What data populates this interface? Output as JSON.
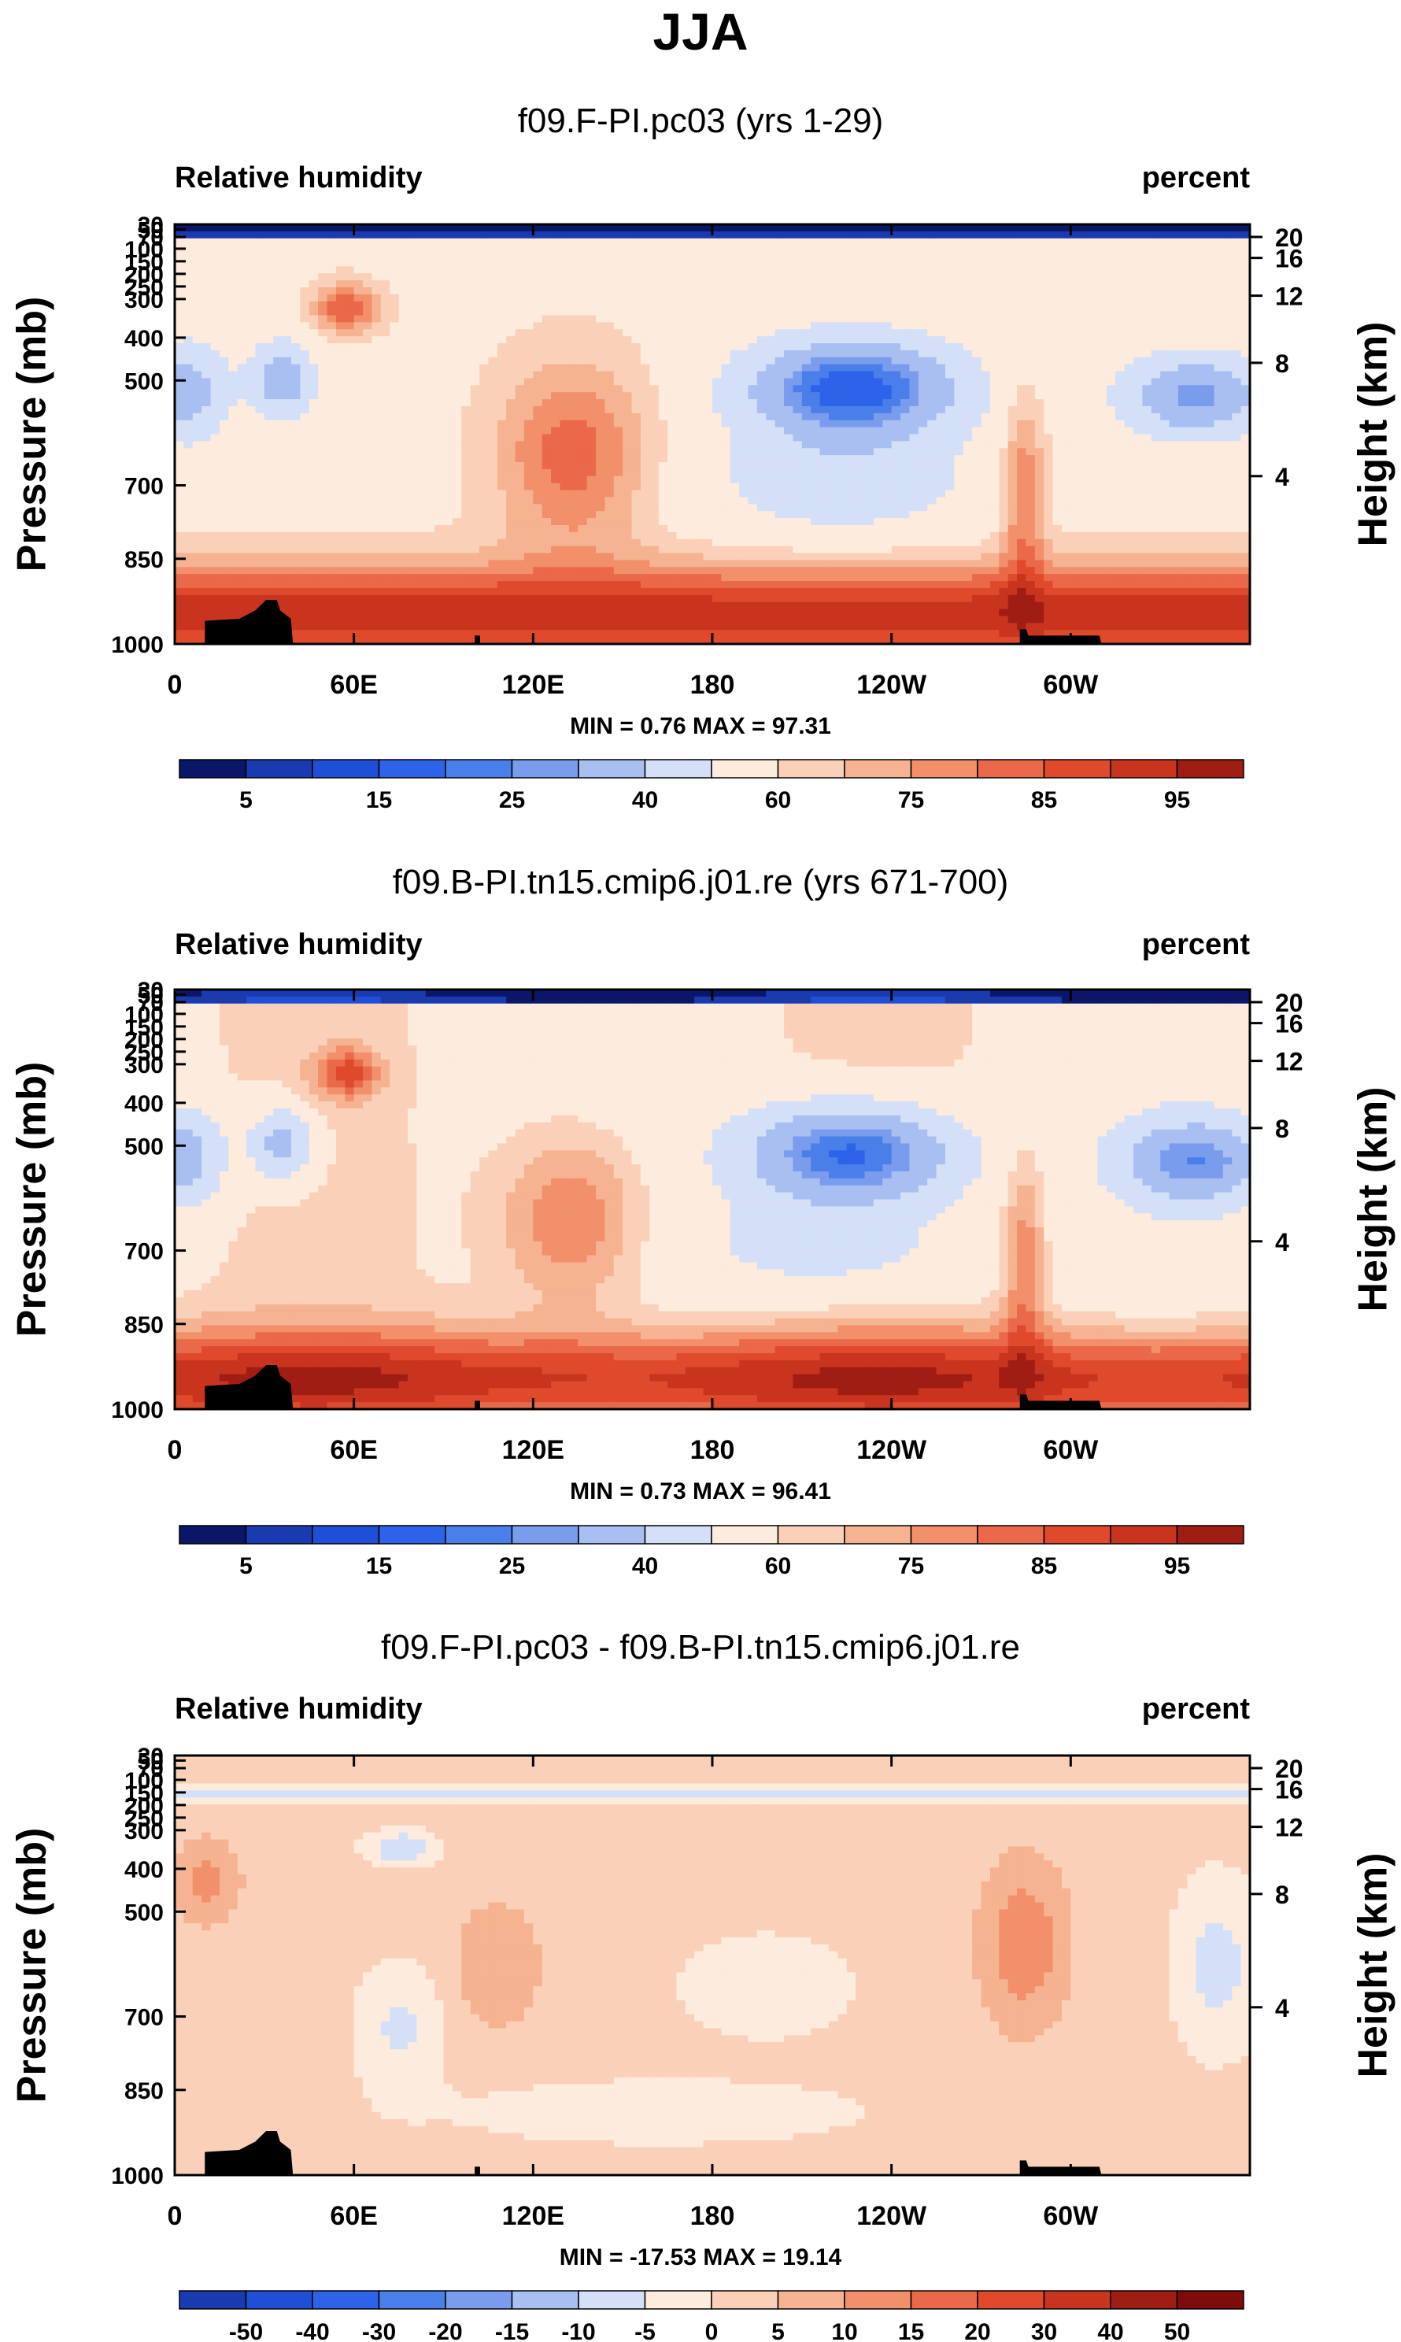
{
  "title": "JJA",
  "chart_data": [
    {
      "type": "heatmap",
      "title": "f09.F-PI.pc03 (yrs 1-29)",
      "left_label": "Relative humidity",
      "right_label": "percent",
      "ylabel": "Pressure (mb)",
      "ylabel_right": "Height (km)",
      "x_ticks": [
        "0",
        "60E",
        "120E",
        "180",
        "120W",
        "60W"
      ],
      "y_ticks": [
        "30",
        "50",
        "70",
        "100",
        "150",
        "200",
        "250",
        "300",
        "400",
        "500",
        "700",
        "850",
        "1000"
      ],
      "height_ticks": [
        "20",
        "16",
        "12",
        "8",
        "4"
      ],
      "stats": "MIN =   0.76  MAX =  97.31",
      "colorbar_labels": [
        "5",
        "15",
        "25",
        "40",
        "60",
        "75",
        "85",
        "95"
      ],
      "levels": [
        5,
        10,
        15,
        20,
        25,
        30,
        40,
        50,
        60,
        65,
        70,
        75,
        80,
        85,
        90,
        95
      ],
      "min": 0.76,
      "max": 97.31
    },
    {
      "type": "heatmap",
      "title": "f09.B-PI.tn15.cmip6.j01.re (yrs 671-700)",
      "left_label": "Relative humidity",
      "right_label": "percent",
      "ylabel": "Pressure (mb)",
      "ylabel_right": "Height (km)",
      "x_ticks": [
        "0",
        "60E",
        "120E",
        "180",
        "120W",
        "60W"
      ],
      "y_ticks": [
        "30",
        "50",
        "70",
        "100",
        "150",
        "200",
        "250",
        "300",
        "400",
        "500",
        "700",
        "850",
        "1000"
      ],
      "height_ticks": [
        "20",
        "16",
        "12",
        "8",
        "4"
      ],
      "stats": "MIN =   0.73  MAX =  96.41",
      "colorbar_labels": [
        "5",
        "15",
        "25",
        "40",
        "60",
        "75",
        "85",
        "95"
      ],
      "levels": [
        5,
        10,
        15,
        20,
        25,
        30,
        40,
        50,
        60,
        65,
        70,
        75,
        80,
        85,
        90,
        95
      ],
      "min": 0.73,
      "max": 96.41
    },
    {
      "type": "heatmap",
      "title": "f09.F-PI.pc03 - f09.B-PI.tn15.cmip6.j01.re",
      "left_label": "Relative humidity",
      "right_label": "percent",
      "ylabel": "Pressure (mb)",
      "ylabel_right": "Height (km)",
      "x_ticks": [
        "0",
        "60E",
        "120E",
        "180",
        "120W",
        "60W"
      ],
      "y_ticks": [
        "30",
        "50",
        "70",
        "100",
        "150",
        "200",
        "250",
        "300",
        "400",
        "500",
        "700",
        "850",
        "1000"
      ],
      "height_ticks": [
        "20",
        "16",
        "12",
        "8",
        "4"
      ],
      "stats": "MIN = -17.53  MAX =  19.14",
      "colorbar_labels": [
        "-50",
        "-40",
        "-30",
        "-20",
        "-15",
        "-10",
        "-5",
        "0",
        "5",
        "10",
        "15",
        "20",
        "30",
        "40",
        "50"
      ],
      "levels": [
        -50,
        -40,
        -30,
        -20,
        -15,
        -10,
        -5,
        0,
        5,
        10,
        15,
        20,
        30,
        40,
        50
      ],
      "min": -17.53,
      "max": 19.14
    }
  ],
  "palette": [
    "#0a1668",
    "#1a3ab0",
    "#1f4fd6",
    "#2d63e8",
    "#4a7ee9",
    "#7a9ced",
    "#a9bff2",
    "#d3e0f7",
    "#fdebdd",
    "#fad1b8",
    "#f6b391",
    "#f1906a",
    "#e9694a",
    "#e04a2c",
    "#c9341f",
    "#a01d14",
    "#7f0c0c"
  ]
}
